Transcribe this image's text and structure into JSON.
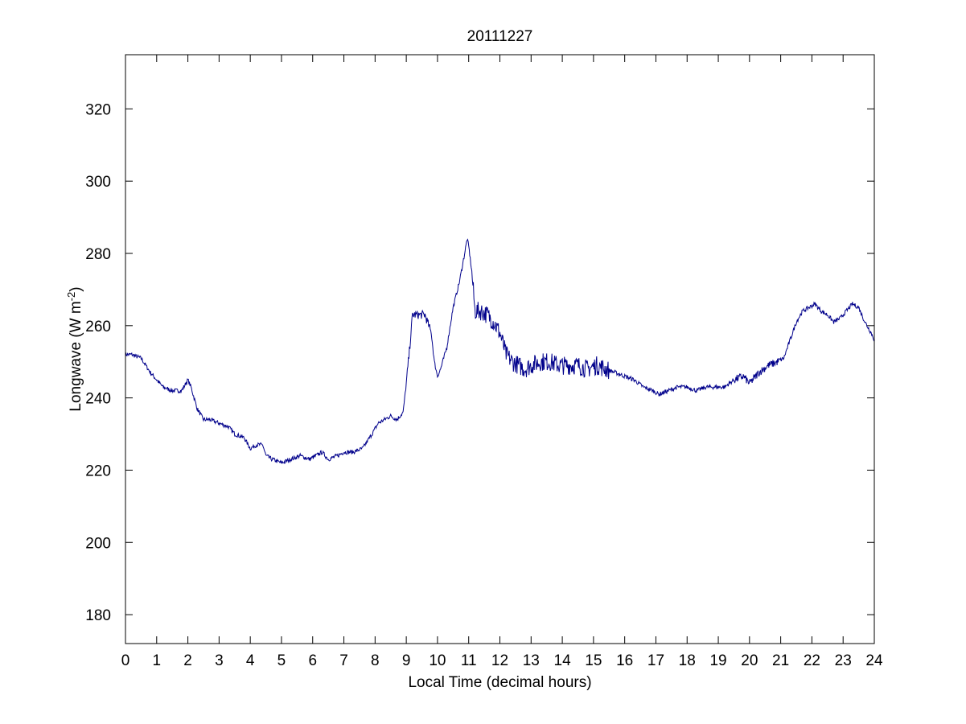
{
  "chart_data": {
    "type": "line",
    "title": "20111227",
    "xlabel": "Local Time (decimal hours)",
    "ylabel": {
      "base": "Longwave (W m",
      "superscript": "-2",
      "closing": ")"
    },
    "xlim": [
      0,
      24
    ],
    "ylim": [
      172,
      335
    ],
    "xticks": [
      "0",
      "1",
      "2",
      "3",
      "4",
      "5",
      "6",
      "7",
      "8",
      "9",
      "10",
      "11",
      "12",
      "13",
      "14",
      "15",
      "16",
      "17",
      "18",
      "19",
      "20",
      "21",
      "22",
      "23",
      "24"
    ],
    "yticks": [
      "180",
      "200",
      "220",
      "240",
      "260",
      "280",
      "300",
      "320"
    ],
    "grid": false,
    "legend": "none",
    "series": [
      {
        "color": "#00008B",
        "x": [
          0.0,
          0.2,
          0.5,
          0.8,
          1.0,
          1.2,
          1.5,
          1.8,
          2.0,
          2.1,
          2.3,
          2.5,
          2.7,
          3.0,
          3.3,
          3.5,
          3.8,
          4.0,
          4.2,
          4.4,
          4.5,
          4.7,
          5.0,
          5.3,
          5.6,
          5.9,
          6.1,
          6.3,
          6.5,
          6.8,
          7.0,
          7.3,
          7.6,
          7.9,
          8.1,
          8.3,
          8.5,
          8.7,
          8.9,
          9.0,
          9.1,
          9.2,
          9.4,
          9.6,
          9.8,
          9.9,
          10.0,
          10.1,
          10.3,
          10.5,
          10.7,
          10.85,
          10.95,
          11.0,
          11.1,
          11.2,
          11.4,
          11.6,
          11.8,
          12.0,
          12.2,
          12.4,
          12.6,
          12.8,
          13.0,
          13.3,
          13.6,
          13.9,
          14.2,
          14.5,
          14.8,
          15.1,
          15.4,
          15.7,
          16.0,
          16.3,
          16.6,
          16.9,
          17.1,
          17.4,
          17.7,
          18.0,
          18.3,
          18.6,
          18.9,
          19.2,
          19.5,
          19.8,
          20.0,
          20.3,
          20.6,
          20.9,
          21.1,
          21.3,
          21.5,
          21.7,
          21.9,
          22.1,
          22.3,
          22.5,
          22.7,
          22.9,
          23.1,
          23.3,
          23.5,
          23.7,
          23.9,
          24.0
        ],
        "y": [
          252,
          252,
          251,
          247,
          245,
          243,
          242,
          242,
          245,
          243,
          237,
          234,
          234,
          233,
          232,
          230,
          229,
          226,
          227,
          227,
          224,
          223,
          222,
          223,
          224,
          223,
          224,
          225,
          223,
          224,
          225,
          225,
          226,
          230,
          233,
          234,
          235,
          234,
          236,
          244,
          253,
          263,
          263,
          263,
          258,
          250,
          246,
          248,
          254,
          265,
          272,
          279,
          284,
          282,
          275,
          264,
          264,
          263,
          261,
          258,
          252,
          250,
          249,
          248,
          249,
          250,
          250,
          249,
          249,
          249,
          248,
          249,
          248,
          247,
          246,
          245,
          243,
          242,
          241,
          242,
          243,
          243,
          242,
          243,
          243,
          243,
          245,
          246,
          244,
          247,
          249,
          250,
          251,
          256,
          261,
          264,
          265,
          266,
          264,
          263,
          261,
          262,
          264,
          266,
          265,
          261,
          258,
          256
        ]
      }
    ]
  }
}
